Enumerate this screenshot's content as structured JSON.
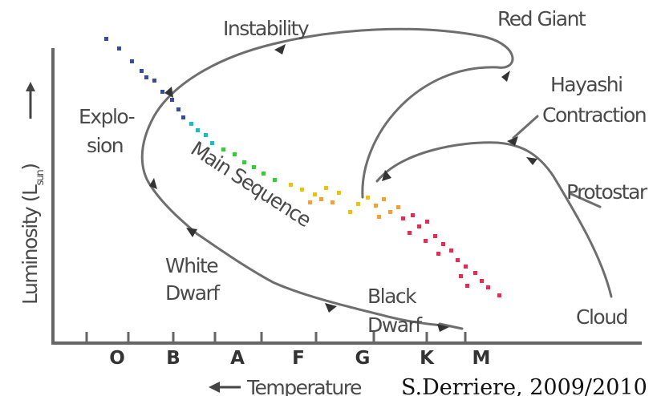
{
  "axes": {
    "ylabel": "Luminosity (L",
    "ylabel_sub": "sun",
    "ylabel_close": ")",
    "xlabel": "Temperature",
    "spectral_classes": [
      "O",
      "B",
      "A",
      "F",
      "G",
      "K",
      "M"
    ]
  },
  "labels": {
    "instability": "Instability",
    "red_giant": "Red Giant",
    "hayashi_1": "Hayashi",
    "hayashi_2": "Contraction",
    "explosion_1": "Explo-",
    "explosion_2": "sion",
    "main_sequence": "Main Sequence",
    "protostar": "Protostar",
    "white_dwarf_1": "White",
    "white_dwarf_2": "Dwarf",
    "black_dwarf_1": "Black",
    "black_dwarf_2": "Dwarf",
    "cloud": "Cloud"
  },
  "credit": "S.Derriere, 2009/2010",
  "colors": {
    "axis": "#666666",
    "path": "#6e6e6e",
    "hot_stars": "#3a4a9a",
    "cyan_stars": "#22b8c0",
    "green_stars": "#3cc83c",
    "yellow_stars": "#e8c020",
    "orange_stars": "#f0a040",
    "red_stars": "#e03050"
  }
}
